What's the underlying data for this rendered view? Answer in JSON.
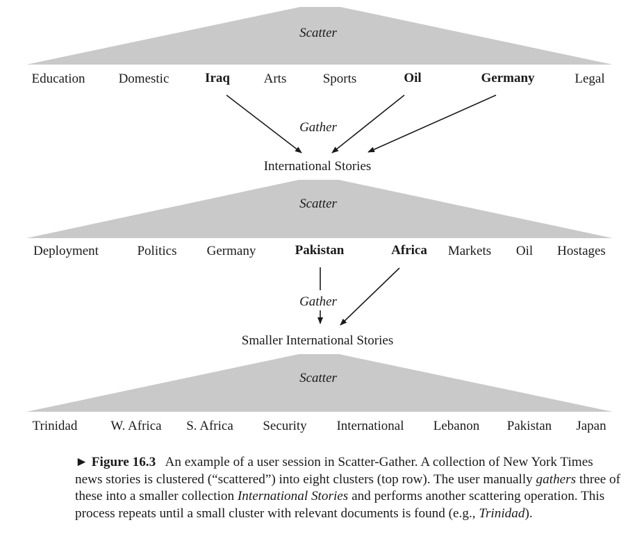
{
  "levels": [
    {
      "scatter_label": "Scatter",
      "clusters": [
        {
          "label": "Education",
          "bold": false
        },
        {
          "label": "Domestic",
          "bold": false
        },
        {
          "label": "Iraq",
          "bold": true
        },
        {
          "label": "Arts",
          "bold": false
        },
        {
          "label": "Sports",
          "bold": false
        },
        {
          "label": "Oil",
          "bold": true
        },
        {
          "label": "Germany",
          "bold": true
        },
        {
          "label": "Legal",
          "bold": false
        }
      ],
      "gather_label": "Gather",
      "gathered_collection": "International Stories"
    },
    {
      "scatter_label": "Scatter",
      "clusters": [
        {
          "label": "Deployment",
          "bold": false
        },
        {
          "label": "Politics",
          "bold": false
        },
        {
          "label": "Germany",
          "bold": false
        },
        {
          "label": "Pakistan",
          "bold": true
        },
        {
          "label": "Africa",
          "bold": true
        },
        {
          "label": "Markets",
          "bold": false
        },
        {
          "label": "Oil",
          "bold": false
        },
        {
          "label": "Hostages",
          "bold": false
        }
      ],
      "gather_label": "Gather",
      "gathered_collection": "Smaller International Stories"
    },
    {
      "scatter_label": "Scatter",
      "clusters": [
        {
          "label": "Trinidad",
          "bold": false
        },
        {
          "label": "W. Africa",
          "bold": false
        },
        {
          "label": "S. Africa",
          "bold": false
        },
        {
          "label": "Security",
          "bold": false
        },
        {
          "label": "International",
          "bold": false
        },
        {
          "label": "Lebanon",
          "bold": false
        },
        {
          "label": "Pakistan",
          "bold": false
        },
        {
          "label": "Japan",
          "bold": false
        }
      ]
    }
  ],
  "caption": {
    "marker": "►",
    "figure_number": "Figure 16.3",
    "text_1": "An example of a user session in Scatter-Gather. A collection of New York Times news stories is clustered (“scattered”) into eight clusters (top row). The user manually ",
    "em_1": "gathers",
    "text_2": " three of these into a smaller collection ",
    "em_2": "International Stories",
    "text_3": " and performs another scattering operation. This process repeats until a small cluster with relevant documents is found (e.g., ",
    "em_3": "Trinidad",
    "text_4": ")."
  }
}
